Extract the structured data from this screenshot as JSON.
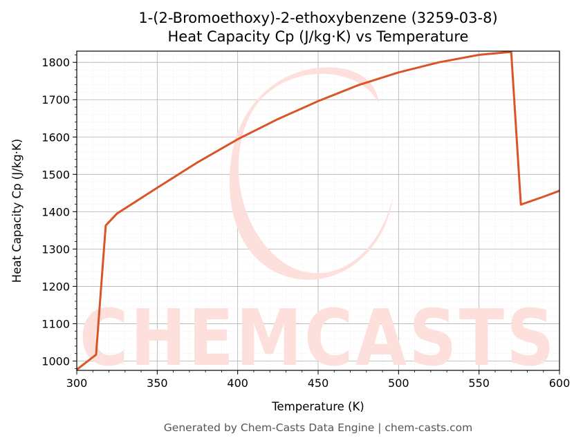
{
  "chart_data": {
    "type": "line",
    "title": "1-(2-Bromoethoxy)-2-ethoxybenzene (3259-03-8)",
    "subtitle": "Heat Capacity Cp (J/kg·K) vs Temperature",
    "xlabel": "Temperature (K)",
    "ylabel": "Heat Capacity Cp (J/kg·K)",
    "xlim": [
      300,
      600
    ],
    "ylim": [
      975,
      1830
    ],
    "xticks": [
      300,
      350,
      400,
      450,
      500,
      550,
      600
    ],
    "yticks": [
      1000,
      1100,
      1200,
      1300,
      1400,
      1500,
      1600,
      1700,
      1800
    ],
    "grid": true,
    "line_color": "#d95427",
    "series": [
      {
        "name": "",
        "x": [
          300,
          312,
          318,
          325,
          350,
          375,
          400,
          425,
          450,
          475,
          500,
          525,
          550,
          565,
          570,
          576,
          590,
          600
        ],
        "y": [
          977,
          1017,
          1363,
          1395,
          1464,
          1532,
          1594,
          1648,
          1696,
          1739,
          1773,
          1800,
          1820,
          1826,
          1828,
          1419,
          1440,
          1456
        ]
      }
    ]
  },
  "footer": "Generated by Chem-Casts Data Engine | chem-casts.com",
  "watermark": "CHEMCASTS"
}
